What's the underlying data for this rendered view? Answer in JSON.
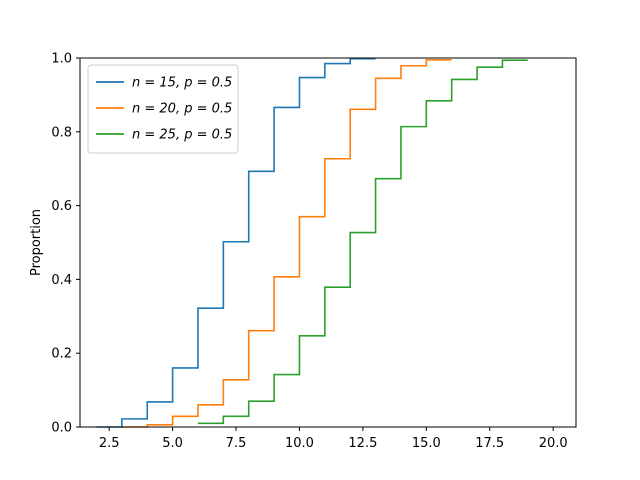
{
  "chart_data": {
    "type": "line",
    "drawstyle": "steps-post",
    "title": "",
    "xlabel": "",
    "ylabel": "Proportion",
    "xlim": [
      1.35,
      20.9
    ],
    "ylim": [
      0,
      1.0
    ],
    "xticks": [
      2.5,
      5.0,
      7.5,
      10.0,
      12.5,
      15.0,
      17.5,
      20.0
    ],
    "xtick_labels": [
      "2.5",
      "5.0",
      "7.5",
      "10.0",
      "12.5",
      "15.0",
      "17.5",
      "20.0"
    ],
    "yticks": [
      0.0,
      0.2,
      0.4,
      0.6,
      0.8,
      1.0
    ],
    "ytick_labels": [
      "0.0",
      "0.2",
      "0.4",
      "0.6",
      "0.8",
      "1.0"
    ],
    "grid": false,
    "legend_position": "upper-left",
    "series": [
      {
        "name": "n = 15, p = 0.5",
        "color": "#1f77b4",
        "x": [
          2,
          3,
          4,
          5,
          6,
          7,
          8,
          9,
          10,
          11,
          12,
          13
        ],
        "y": [
          0.0,
          0.022,
          0.068,
          0.16,
          0.322,
          0.502,
          0.693,
          0.866,
          0.947,
          0.985,
          0.998,
          0.998
        ]
      },
      {
        "name": "n = 20, p = 0.5",
        "color": "#ff7f0e",
        "x": [
          3,
          4,
          5,
          6,
          7,
          8,
          9,
          10,
          11,
          12,
          13,
          14,
          15,
          16
        ],
        "y": [
          0.0,
          0.006,
          0.029,
          0.06,
          0.128,
          0.261,
          0.407,
          0.57,
          0.727,
          0.861,
          0.945,
          0.979,
          0.995,
          0.995
        ]
      },
      {
        "name": "n = 25, p = 0.5",
        "color": "#2ca02c",
        "x": [
          6,
          7,
          8,
          9,
          10,
          11,
          12,
          13,
          14,
          15,
          16,
          17,
          18,
          19
        ],
        "y": [
          0.01,
          0.029,
          0.07,
          0.142,
          0.247,
          0.379,
          0.527,
          0.673,
          0.814,
          0.884,
          0.942,
          0.975,
          0.994,
          0.994
        ]
      }
    ]
  }
}
